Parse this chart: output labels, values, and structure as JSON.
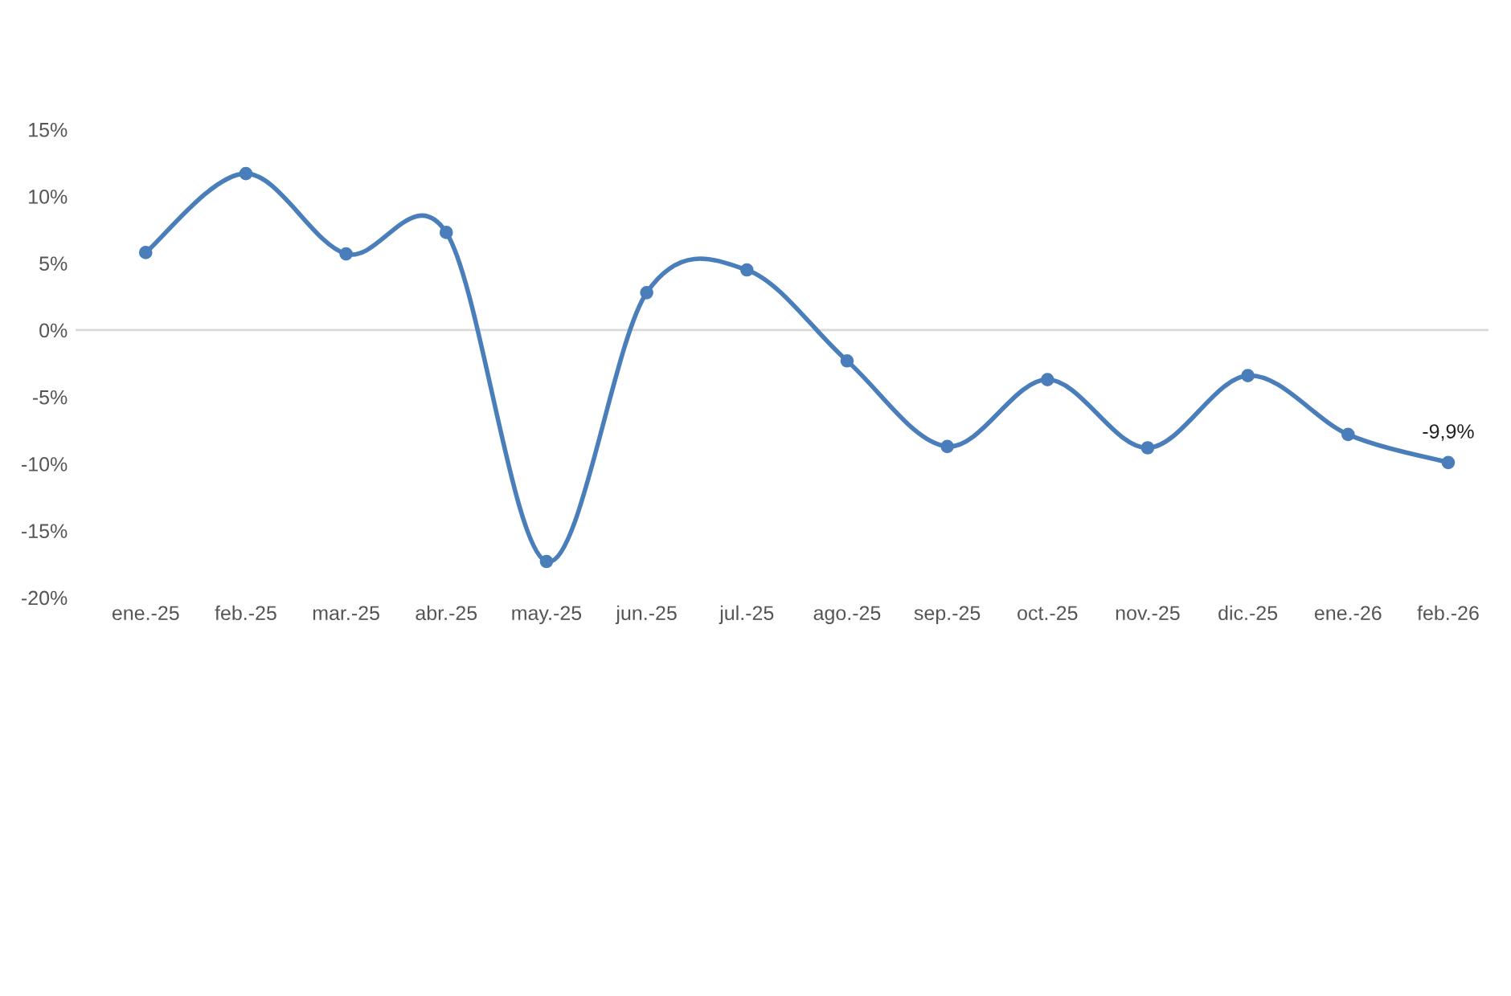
{
  "chart_data": {
    "type": "line",
    "categories": [
      "ene.-25",
      "feb.-25",
      "mar.-25",
      "abr.-25",
      "may.-25",
      "jun.-25",
      "jul.-25",
      "ago.-25",
      "sep.-25",
      "oct.-25",
      "nov.-25",
      "dic.-25",
      "ene.-26",
      "feb.-26"
    ],
    "series": [
      {
        "color": "#4a7ebb",
        "values": [
          5.8,
          11.7,
          5.7,
          7.3,
          -17.3,
          2.8,
          4.5,
          -2.3,
          -8.7,
          -3.7,
          -8.8,
          -3.4,
          -7.8,
          -9.9
        ],
        "value_labels": [
          null,
          null,
          null,
          null,
          null,
          null,
          null,
          null,
          null,
          null,
          null,
          null,
          null,
          "-9,9%"
        ]
      }
    ],
    "ylim": [
      -20,
      15
    ],
    "yticks": [
      {
        "value": -20,
        "label": "-20%"
      },
      {
        "value": -15,
        "label": "-15%"
      },
      {
        "value": -10,
        "label": "-10%"
      },
      {
        "value": -5,
        "label": "-5%"
      },
      {
        "value": 0,
        "label": "0%"
      },
      {
        "value": 5,
        "label": "5%"
      },
      {
        "value": 10,
        "label": "10%"
      },
      {
        "value": 15,
        "label": "15%"
      }
    ],
    "ref_lines": [
      {
        "axis": "y",
        "value": 0,
        "color": "#d9d9d9"
      }
    ],
    "marker": "circle",
    "line_style": "solid",
    "grid": false,
    "legend": false
  }
}
